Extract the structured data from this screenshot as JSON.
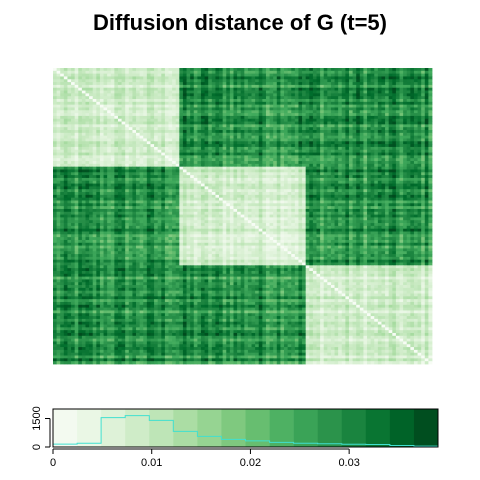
{
  "title": "Diffusion distance of G (t=5)",
  "chart_data": [
    {
      "type": "heatmap",
      "title": "Diffusion distance of G (t=5)",
      "n_blocks": 3,
      "nodes_per_block": 35,
      "within_block_distance_range": [
        0.002,
        0.014
      ],
      "between_block_distance_range": [
        0.018,
        0.038
      ],
      "diagonal_value": 0,
      "colormap": [
        "#f7fcf5",
        "#e5f5e0",
        "#c7e9c0",
        "#a1d99b",
        "#74c476",
        "#41ab5d",
        "#238b45",
        "#006d2c",
        "#00441b"
      ],
      "value_range": [
        0,
        0.039
      ],
      "grid": false
    },
    {
      "type": "bar",
      "title": "",
      "xlabel": "",
      "ylabel": "",
      "x_ticks": [
        "0",
        "0.01",
        "0.02",
        "0.03"
      ],
      "x_tick_values": [
        0,
        0.01,
        0.02,
        0.03
      ],
      "y_ticks": [
        "0",
        "1500"
      ],
      "y_tick_values": [
        0,
        1500
      ],
      "xlim": [
        0,
        0.039
      ],
      "ylim": [
        0,
        2000
      ],
      "bin_width": 0.0024375,
      "histogram_counts": [
        150,
        200,
        1550,
        1650,
        1400,
        820,
        560,
        400,
        320,
        240,
        200,
        170,
        140,
        130,
        80,
        50
      ],
      "histogram_line_color": "#40e0d0",
      "colorbar_bins": 16
    }
  ]
}
